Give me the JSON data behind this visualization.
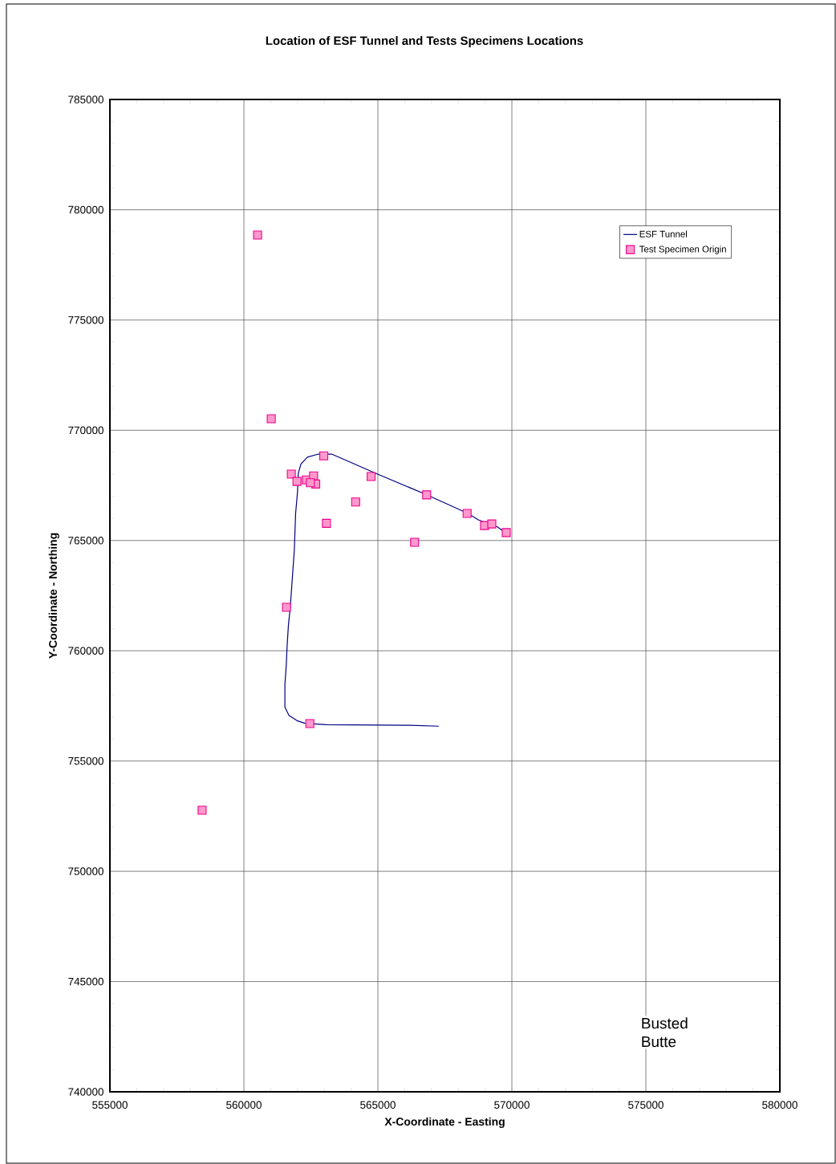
{
  "chart_data": {
    "type": "scatter",
    "title": "Location of ESF Tunnel and Tests Specimens Locations",
    "xlabel": "X-Coordinate - Easting",
    "ylabel": "Y-Coordinate - Northing",
    "xlim": [
      555000,
      580000
    ],
    "ylim": [
      740000,
      785000
    ],
    "xticks": [
      555000,
      560000,
      565000,
      570000,
      575000,
      580000
    ],
    "yticks": [
      740000,
      745000,
      750000,
      755000,
      760000,
      765000,
      770000,
      775000,
      780000,
      785000
    ],
    "grid": true,
    "legend": "top right",
    "annotations": [
      "Busted Butte"
    ],
    "series": [
      {
        "name": "ESF Tunnel",
        "type": "line",
        "color": "#000080",
        "marker": "none",
        "line_style": "solid",
        "x": [
          567270,
          566220,
          563080,
          562280,
          561980,
          561680,
          561530,
          561530,
          561580,
          561610,
          561660,
          561730,
          561780,
          561830,
          561880,
          561930,
          562000,
          562030,
          562130,
          562370,
          562780,
          563270,
          563670,
          564970,
          566770,
          568360,
          568760,
          569460,
          569660
        ],
        "values": [
          756580,
          756620,
          756650,
          756710,
          756830,
          757070,
          757440,
          758480,
          759320,
          760160,
          761140,
          761980,
          762830,
          763680,
          764530,
          766230,
          767200,
          768050,
          768470,
          768780,
          768920,
          768920,
          768710,
          768020,
          767100,
          766230,
          765930,
          765620,
          765440
        ]
      },
      {
        "name": "Test Specimen Origin",
        "color": "#ff99cc",
        "marker": "square",
        "x": [
          560510,
          561020,
          561770,
          561980,
          562330,
          562600,
          562680,
          562480,
          562980,
          564750,
          564170,
          563080,
          566820,
          568330,
          568980,
          569250,
          569790,
          566370,
          561590,
          562460,
          558440
        ],
        "values": [
          778850,
          770520,
          768010,
          767680,
          767750,
          767930,
          767560,
          767620,
          768840,
          767900,
          766750,
          765780,
          767070,
          766230,
          765680,
          765750,
          765360,
          764920,
          761970,
          756700,
          752770
        ]
      }
    ]
  }
}
